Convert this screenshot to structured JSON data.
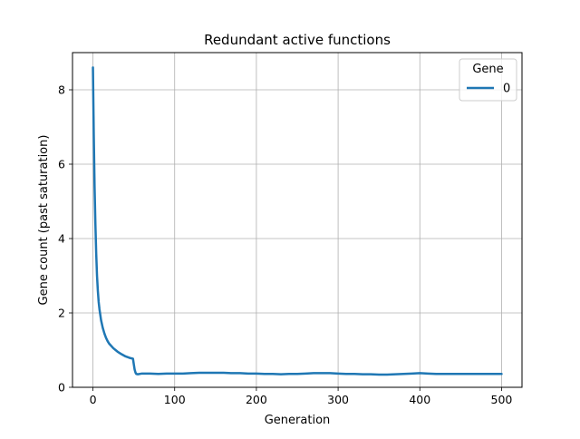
{
  "chart_data": {
    "type": "line",
    "title": "Redundant active functions",
    "xlabel": "Generation",
    "ylabel": "Gene count (past saturation)",
    "xlim": [
      -25,
      525
    ],
    "ylim": [
      0,
      9
    ],
    "xticks": [
      0,
      100,
      200,
      300,
      400,
      500
    ],
    "yticks": [
      0,
      2,
      4,
      6,
      8
    ],
    "xtick_labels": [
      "0",
      "100",
      "200",
      "300",
      "400",
      "500"
    ],
    "ytick_labels": [
      "0",
      "2",
      "4",
      "6",
      "8"
    ],
    "grid": true,
    "legend": {
      "title": "Gene",
      "placement": "top-right"
    },
    "series": [
      {
        "name": "0",
        "color": "#1f77b4",
        "x": [
          0,
          1,
          2,
          3,
          4,
          5,
          6,
          7,
          8,
          10,
          12,
          14,
          16,
          18,
          20,
          25,
          30,
          35,
          40,
          45,
          49,
          50,
          51,
          52,
          53,
          55,
          60,
          70,
          80,
          90,
          100,
          110,
          120,
          130,
          140,
          150,
          160,
          170,
          180,
          190,
          200,
          210,
          220,
          230,
          240,
          250,
          260,
          270,
          280,
          290,
          300,
          310,
          320,
          330,
          340,
          350,
          360,
          370,
          380,
          390,
          400,
          410,
          420,
          430,
          440,
          450,
          460,
          470,
          480,
          490,
          500
        ],
        "values": [
          8.6,
          6.8,
          5.4,
          4.4,
          3.6,
          3.0,
          2.6,
          2.3,
          2.1,
          1.8,
          1.6,
          1.45,
          1.33,
          1.24,
          1.17,
          1.05,
          0.96,
          0.89,
          0.83,
          0.79,
          0.77,
          0.62,
          0.48,
          0.4,
          0.36,
          0.35,
          0.37,
          0.37,
          0.36,
          0.37,
          0.37,
          0.37,
          0.38,
          0.39,
          0.39,
          0.39,
          0.39,
          0.38,
          0.38,
          0.37,
          0.37,
          0.36,
          0.36,
          0.35,
          0.36,
          0.36,
          0.37,
          0.38,
          0.38,
          0.38,
          0.37,
          0.36,
          0.36,
          0.35,
          0.35,
          0.34,
          0.34,
          0.35,
          0.36,
          0.37,
          0.38,
          0.37,
          0.36,
          0.36,
          0.36,
          0.36,
          0.36,
          0.36,
          0.36,
          0.36,
          0.36
        ]
      }
    ]
  }
}
